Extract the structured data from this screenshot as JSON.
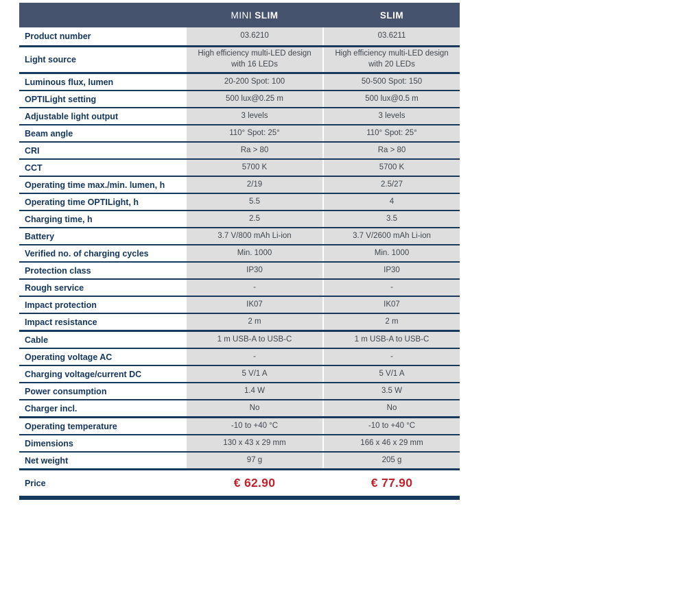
{
  "table": {
    "columns": [
      {
        "prefix": "MINI ",
        "name": "SLIM"
      },
      {
        "prefix": "",
        "name": "SLIM"
      }
    ],
    "rows": [
      {
        "label": "Product number",
        "values": [
          "03.6210",
          "03.6211"
        ],
        "section_end": true,
        "first": true
      },
      {
        "label": "Light source",
        "values": [
          "High efficiency multi-LED design with 16 LEDs",
          "High efficiency multi-LED design with 20 LEDs"
        ],
        "section_end": true,
        "tall": true
      },
      {
        "label": "Luminous flux, lumen",
        "values": [
          "20-200 Spot: 100",
          "50-500 Spot: 150"
        ]
      },
      {
        "label": "OPTILight setting",
        "values": [
          "500 lux@0.25 m",
          "500 lux@0.5 m"
        ]
      },
      {
        "label": "Adjustable light output",
        "values": [
          "3 levels",
          "3 levels"
        ]
      },
      {
        "label": "Beam angle",
        "values": [
          "110° Spot: 25°",
          "110° Spot: 25°"
        ]
      },
      {
        "label": "CRI",
        "values": [
          "Ra > 80",
          "Ra > 80"
        ]
      },
      {
        "label": "CCT",
        "values": [
          "5700 K",
          "5700 K"
        ]
      },
      {
        "label": "Operating time max./min. lumen, h",
        "values": [
          "2/19",
          "2.5/27"
        ]
      },
      {
        "label": "Operating time OPTILight, h",
        "values": [
          "5.5",
          "4"
        ]
      },
      {
        "label": "Charging time, h",
        "values": [
          "2.5",
          "3.5"
        ]
      },
      {
        "label": "Battery",
        "values": [
          "3.7 V/800 mAh Li-ion",
          "3.7 V/2600 mAh Li-ion"
        ]
      },
      {
        "label": "Verified no. of charging cycles",
        "values": [
          "Min. 1000",
          "Min. 1000"
        ]
      },
      {
        "label": "Protection class",
        "values": [
          "IP30",
          "IP30"
        ]
      },
      {
        "label": "Rough service",
        "values": [
          "-",
          "-"
        ]
      },
      {
        "label": "Impact protection",
        "values": [
          "IK07",
          "IK07"
        ]
      },
      {
        "label": "Impact resistance",
        "values": [
          "2 m",
          "2 m"
        ],
        "section_end": true
      },
      {
        "label": "Cable",
        "values": [
          "1 m USB-A to USB-C",
          "1 m USB-A to USB-C"
        ]
      },
      {
        "label": "Operating voltage AC",
        "values": [
          "-",
          "-"
        ]
      },
      {
        "label": "Charging voltage/current DC",
        "values": [
          "5 V/1 A",
          "5 V/1 A"
        ]
      },
      {
        "label": "Power consumption",
        "values": [
          "1.4 W",
          "3.5 W"
        ]
      },
      {
        "label": "Charger incl.",
        "values": [
          "No",
          "No"
        ],
        "section_end": true
      },
      {
        "label": "Operating temperature",
        "values": [
          "-10 to +40 °C",
          "-10 to +40 °C"
        ]
      },
      {
        "label": "Dimensions",
        "values": [
          "130 x 43 x 29 mm",
          "166 x 46 x 29 mm"
        ]
      },
      {
        "label": "Net weight",
        "values": [
          "97 g",
          "205 g"
        ],
        "section_end": true
      }
    ],
    "price_row": {
      "label": "Price",
      "values": [
        "€ 62.90",
        "€ 77.90"
      ]
    }
  },
  "colors": {
    "header_background": "#45536e",
    "row_border_navy": "#17395e",
    "label_text_navy": "#14365c",
    "value_cell_gray": "#dedede",
    "value_text": "#40474e",
    "price_red": "#c0232d"
  }
}
